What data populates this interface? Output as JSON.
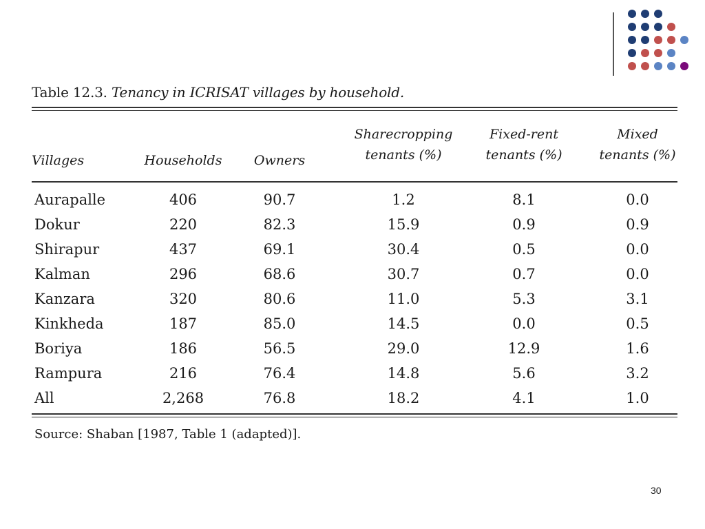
{
  "slide": {
    "title_prefix": "Table 12.3.",
    "title_text": "Tenancy in ICRISAT villages by household.",
    "source": "Source: Shaban [1987, Table 1 (adapted)].",
    "page_number": "30"
  },
  "decor_dots": {
    "colors": {
      "navy": "#1f3d73",
      "red": "#c0504d",
      "blue": "#5b84c4",
      "purple": "#7a0a7a"
    },
    "rows": [
      [
        "navy",
        "navy",
        "navy",
        null,
        null
      ],
      [
        "navy",
        "navy",
        "navy",
        "red",
        null
      ],
      [
        "navy",
        "navy",
        "red",
        "red",
        "blue"
      ],
      [
        "navy",
        "red",
        "red",
        "blue",
        null
      ],
      [
        "red",
        "red",
        "blue",
        "blue",
        "purple"
      ]
    ]
  },
  "table": {
    "headers": [
      {
        "key": "villages",
        "lines": [
          "Villages"
        ]
      },
      {
        "key": "households",
        "lines": [
          "Households"
        ]
      },
      {
        "key": "owners",
        "lines": [
          "Owners"
        ]
      },
      {
        "key": "sharecropping",
        "lines": [
          "Sharecropping",
          "tenants (%)"
        ]
      },
      {
        "key": "fixed_rent",
        "lines": [
          "Fixed-rent",
          "tenants (%)"
        ]
      },
      {
        "key": "mixed",
        "lines": [
          "Mixed",
          "tenants (%)"
        ]
      }
    ],
    "rows": [
      [
        "Aurapalle",
        "406",
        "90.7",
        "1.2",
        "8.1",
        "0.0"
      ],
      [
        "Dokur",
        "220",
        "82.3",
        "15.9",
        "0.9",
        "0.9"
      ],
      [
        "Shirapur",
        "437",
        "69.1",
        "30.4",
        "0.5",
        "0.0"
      ],
      [
        "Kalman",
        "296",
        "68.6",
        "30.7",
        "0.7",
        "0.0"
      ],
      [
        "Kanzara",
        "320",
        "80.6",
        "11.0",
        "5.3",
        "3.1"
      ],
      [
        "Kinkheda",
        "187",
        "85.0",
        "14.5",
        "0.0",
        "0.5"
      ],
      [
        "Boriya",
        "186",
        "56.5",
        "29.0",
        "12.9",
        "1.6"
      ],
      [
        "Rampura",
        "216",
        "76.4",
        "14.8",
        "5.6",
        "3.2"
      ],
      [
        "All",
        "2,268",
        "76.8",
        "18.2",
        "4.1",
        "1.0"
      ]
    ]
  }
}
